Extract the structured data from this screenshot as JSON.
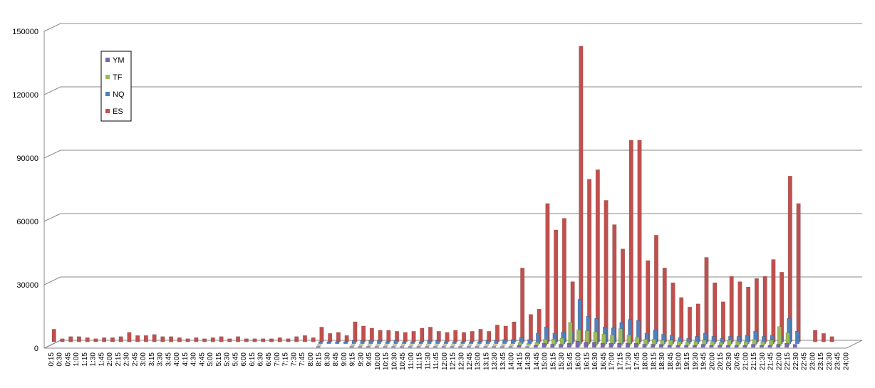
{
  "chart_data": {
    "type": "bar3d",
    "categories": [
      "0:15",
      "0:30",
      "0:45",
      "1:00",
      "1:15",
      "1:30",
      "1:45",
      "2:00",
      "2:15",
      "2:30",
      "2:45",
      "3:00",
      "3:15",
      "3:30",
      "3:45",
      "4:00",
      "4:15",
      "4:30",
      "4:45",
      "5:00",
      "5:15",
      "5:30",
      "5:45",
      "6:00",
      "6:15",
      "6:30",
      "6:45",
      "7:00",
      "7:15",
      "7:30",
      "7:45",
      "8:00",
      "8:15",
      "8:30",
      "8:45",
      "9:00",
      "9:15",
      "9:30",
      "9:45",
      "10:00",
      "10:15",
      "10:30",
      "10:45",
      "11:00",
      "11:15",
      "11:30",
      "11:45",
      "12:00",
      "12:15",
      "12:30",
      "12:45",
      "13:00",
      "13:15",
      "13:30",
      "13:45",
      "14:00",
      "14:15",
      "14:30",
      "14:45",
      "15:00",
      "15:15",
      "15:30",
      "15:45",
      "16:00",
      "16:15",
      "16:30",
      "16:45",
      "17:00",
      "17:15",
      "17:30",
      "17:45",
      "18:00",
      "18:15",
      "18:30",
      "18:45",
      "19:00",
      "19:15",
      "19:30",
      "19:45",
      "20:00",
      "20:15",
      "20:30",
      "20:45",
      "21:00",
      "21:15",
      "21:30",
      "21:45",
      "22:00",
      "22:15",
      "22:30",
      "22:45",
      "23:00",
      "23:15",
      "23:30",
      "23:45",
      "24:00"
    ],
    "series": [
      {
        "name": "YM",
        "color": "#7a66b0",
        "values": [
          0,
          0,
          0,
          0,
          0,
          0,
          0,
          0,
          0,
          0,
          0,
          0,
          0,
          0,
          0,
          0,
          0,
          0,
          0,
          0,
          0,
          0,
          0,
          0,
          0,
          0,
          0,
          0,
          0,
          0,
          0,
          0,
          500,
          0,
          0,
          0,
          500,
          500,
          500,
          500,
          500,
          500,
          500,
          500,
          500,
          500,
          500,
          500,
          500,
          500,
          500,
          500,
          500,
          500,
          500,
          500,
          1000,
          500,
          1000,
          2000,
          1500,
          1500,
          2000,
          3000,
          2500,
          2500,
          2000,
          2000,
          2000,
          2000,
          2000,
          1500,
          1500,
          1500,
          1000,
          1000,
          1000,
          1000,
          1500,
          1000,
          1000,
          1000,
          1000,
          1000,
          1500,
          1000,
          1000,
          1500,
          2000,
          1500,
          0,
          0,
          0,
          0,
          0,
          0
        ]
      },
      {
        "name": "TF",
        "color": "#9bbb59",
        "values": [
          0,
          0,
          0,
          0,
          0,
          0,
          0,
          0,
          0,
          0,
          0,
          0,
          0,
          0,
          0,
          0,
          0,
          0,
          0,
          0,
          0,
          0,
          0,
          0,
          0,
          0,
          0,
          0,
          0,
          0,
          0,
          0,
          500,
          0,
          0,
          0,
          500,
          500,
          500,
          500,
          500,
          500,
          500,
          500,
          500,
          500,
          500,
          500,
          500,
          500,
          500,
          500,
          500,
          500,
          500,
          500,
          1500,
          1000,
          1500,
          3000,
          3000,
          3500,
          11000,
          7500,
          7000,
          6500,
          5500,
          5000,
          8000,
          5000,
          4000,
          3000,
          3000,
          2500,
          2500,
          2000,
          1500,
          2000,
          2500,
          2000,
          1500,
          2500,
          2000,
          2000,
          3000,
          2000,
          2500,
          9000,
          6000,
          0,
          0,
          0,
          0,
          0,
          0,
          0
        ]
      },
      {
        "name": "NQ",
        "color": "#4f81bd",
        "values": [
          0,
          0,
          0,
          0,
          0,
          0,
          0,
          0,
          0,
          0,
          0,
          0,
          0,
          0,
          0,
          0,
          0,
          0,
          0,
          0,
          0,
          0,
          0,
          0,
          0,
          0,
          0,
          0,
          0,
          0,
          0,
          0,
          1000,
          1000,
          1000,
          1000,
          1500,
          1500,
          1500,
          1500,
          1000,
          1500,
          1000,
          1000,
          1000,
          1500,
          1500,
          1000,
          1000,
          1000,
          1000,
          1000,
          1500,
          1500,
          2000,
          2000,
          3000,
          2000,
          5000,
          8000,
          5000,
          5500,
          6000,
          21000,
          13000,
          12000,
          8000,
          7500,
          10000,
          11500,
          11000,
          5000,
          6500,
          4500,
          4000,
          3000,
          2500,
          3500,
          5000,
          3500,
          2500,
          3500,
          3500,
          4000,
          6000,
          3500,
          4000,
          4000,
          12000,
          6000,
          0,
          0,
          0,
          0,
          0,
          0
        ]
      },
      {
        "name": "ES",
        "color": "#c0504d",
        "values": [
          6000,
          1500,
          2500,
          2500,
          2000,
          1500,
          2000,
          2000,
          2500,
          4500,
          3000,
          3000,
          3500,
          2500,
          2500,
          2000,
          1500,
          2000,
          1500,
          2000,
          2500,
          1500,
          2500,
          1500,
          1500,
          1500,
          1500,
          2000,
          1500,
          2500,
          3000,
          2000,
          7000,
          4000,
          4500,
          3000,
          9500,
          7500,
          6500,
          5500,
          5500,
          5000,
          4500,
          5000,
          6500,
          7000,
          5000,
          4500,
          5500,
          4500,
          5000,
          6000,
          5000,
          8000,
          7500,
          9500,
          35000,
          13000,
          15500,
          65500,
          53000,
          58500,
          28500,
          140000,
          77000,
          81500,
          67000,
          55500,
          44000,
          95500,
          95500,
          38500,
          50500,
          35000,
          28000,
          21000,
          16500,
          18000,
          40000,
          28000,
          19000,
          31000,
          28500,
          26000,
          30000,
          31000,
          39000,
          33000,
          78500,
          65500,
          0,
          5500,
          4000,
          2500,
          0,
          0
        ]
      }
    ],
    "ylim": [
      0,
      150000
    ],
    "yticks": [
      0,
      30000,
      60000,
      90000,
      120000,
      150000
    ],
    "grid": true,
    "legend": "top-left"
  }
}
